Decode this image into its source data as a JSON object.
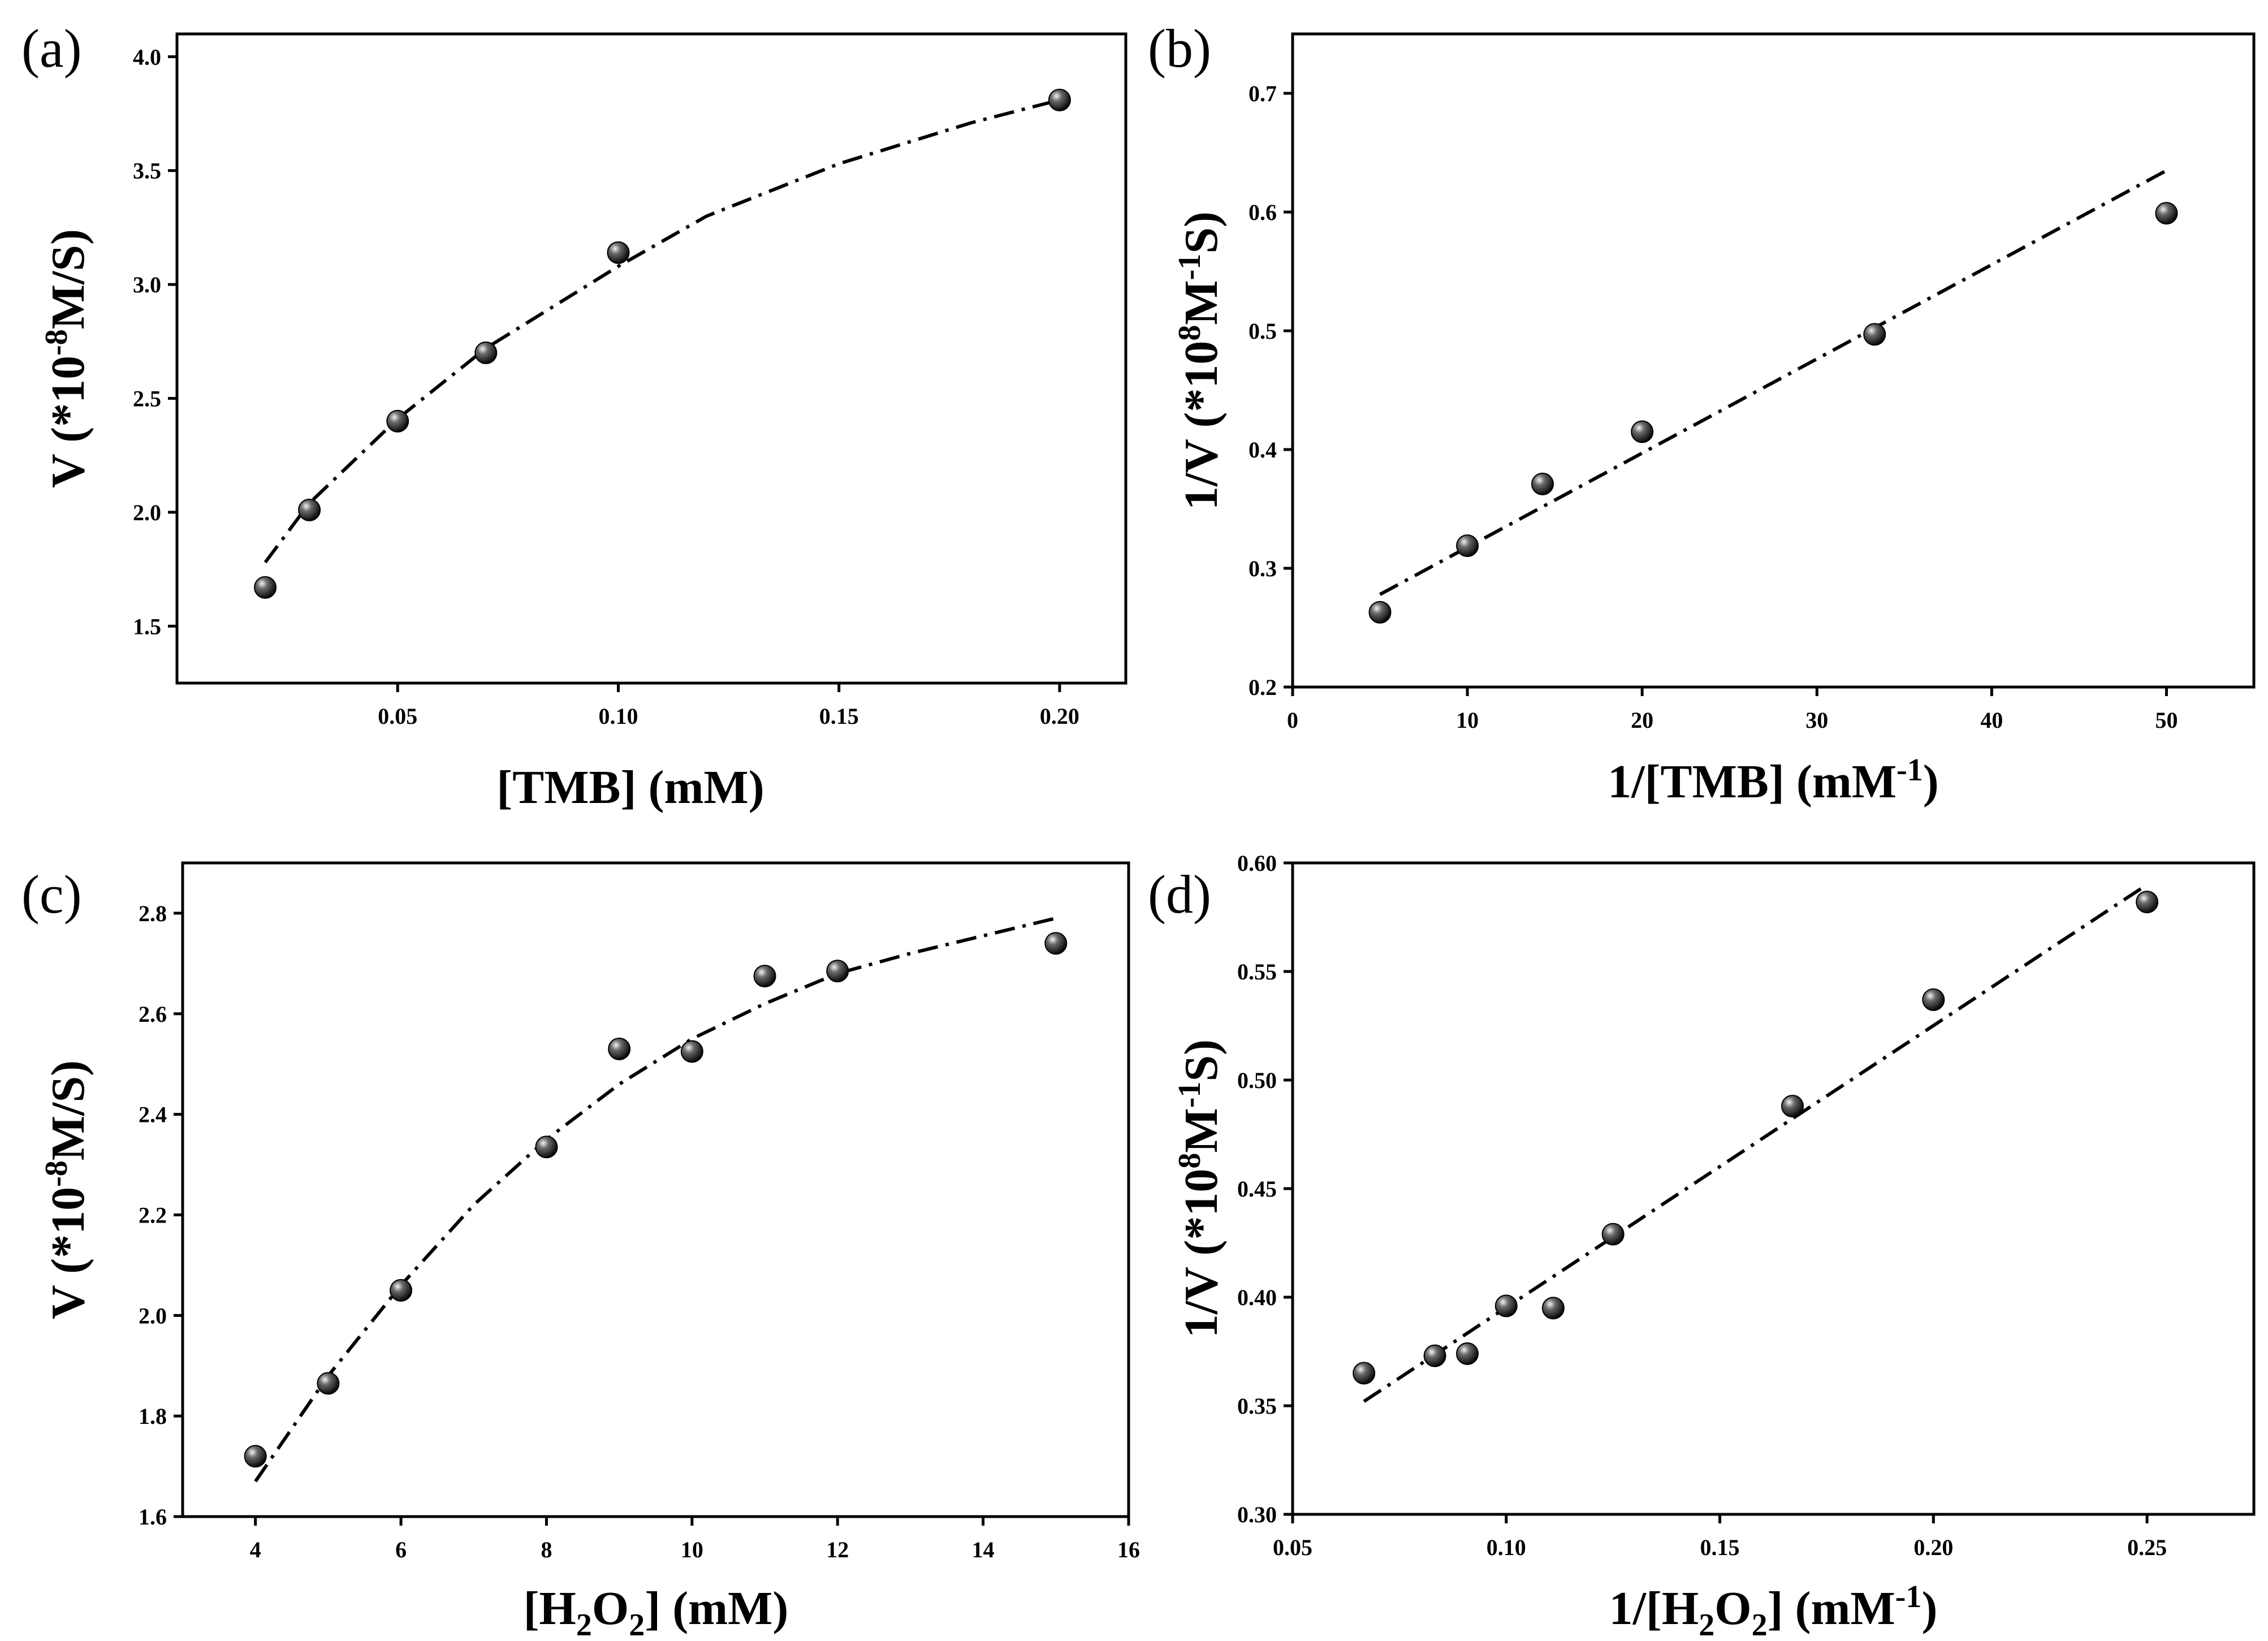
{
  "figure": {
    "background": "#ffffff",
    "marker_color": "#111111",
    "line_color": "#000000"
  },
  "chart_data": [
    {
      "id": "a",
      "panel_label": "(a)",
      "type": "scatter",
      "fit": "michaelis-menten",
      "x": [
        0.02,
        0.03,
        0.05,
        0.07,
        0.1,
        0.2
      ],
      "y": [
        1.67,
        2.01,
        2.4,
        2.7,
        3.14,
        3.81
      ],
      "fit_x": [
        0.02,
        0.03,
        0.05,
        0.07,
        0.1,
        0.12,
        0.15,
        0.18,
        0.2
      ],
      "fit_y": [
        1.78,
        2.04,
        2.41,
        2.72,
        3.08,
        3.3,
        3.53,
        3.71,
        3.81
      ],
      "xlim": [
        0.0,
        0.215
      ],
      "ylim": [
        1.25,
        4.1
      ],
      "xticks": [
        "0.05",
        "0.10",
        "0.15",
        "0.20"
      ],
      "yticks": [
        "1.5",
        "2.0",
        "2.5",
        "3.0",
        "3.5",
        "4.0"
      ],
      "xlabel": {
        "main": "[TMB] (mM)"
      },
      "ylabel": {
        "pre": "V (*10",
        "sup": "-8",
        "post": "M/S)"
      }
    },
    {
      "id": "b",
      "panel_label": "(b)",
      "type": "scatter",
      "fit": "linear",
      "x": [
        5,
        10,
        14.3,
        20,
        33.3,
        50
      ],
      "y": [
        0.263,
        0.319,
        0.371,
        0.415,
        0.497,
        0.599
      ],
      "fit_x": [
        5,
        50
      ],
      "fit_y": [
        0.278,
        0.635
      ],
      "xlim": [
        0,
        55
      ],
      "ylim": [
        0.2,
        0.75
      ],
      "xticks": [
        "0",
        "10",
        "20",
        "30",
        "40",
        "50"
      ],
      "yticks": [
        "0.2",
        "0.3",
        "0.4",
        "0.5",
        "0.6",
        "0.7"
      ],
      "xlabel": {
        "pre": "1/[TMB] (mM",
        "sup": "-1",
        "post": ")"
      },
      "ylabel": {
        "pre": "1/V (*10",
        "sup": "8",
        "mid": "M",
        "sup2": "-1",
        "post": "S)"
      }
    },
    {
      "id": "c",
      "panel_label": "(c)",
      "type": "scatter",
      "fit": "michaelis-menten",
      "x": [
        4,
        5,
        6,
        8,
        9,
        10,
        11,
        12,
        15
      ],
      "y": [
        1.72,
        1.865,
        2.05,
        2.335,
        2.53,
        2.525,
        2.675,
        2.685,
        2.74
      ],
      "fit_x": [
        4,
        5,
        6,
        7,
        8,
        9,
        10,
        11,
        12,
        13,
        14,
        15
      ],
      "fit_y": [
        1.67,
        1.88,
        2.06,
        2.22,
        2.35,
        2.46,
        2.55,
        2.62,
        2.68,
        2.72,
        2.755,
        2.79
      ],
      "xlim": [
        3,
        16
      ],
      "ylim": [
        1.6,
        2.9
      ],
      "xticks": [
        "4",
        "6",
        "8",
        "10",
        "12",
        "14",
        "16"
      ],
      "yticks": [
        "1.6",
        "1.8",
        "2.0",
        "2.2",
        "2.4",
        "2.6",
        "2.8"
      ],
      "xlabel": {
        "pre": "[H",
        "sub": "2",
        "mid": "O",
        "sub2": "2",
        "post": "] (mM)"
      },
      "ylabel": {
        "pre": "V (*10",
        "sup": "-8",
        "post": "M/S)"
      }
    },
    {
      "id": "d",
      "panel_label": "(d)",
      "type": "scatter",
      "fit": "linear",
      "x": [
        0.0667,
        0.0833,
        0.0909,
        0.1,
        0.111,
        0.125,
        0.167,
        0.2,
        0.25
      ],
      "y": [
        0.365,
        0.373,
        0.374,
        0.396,
        0.395,
        0.429,
        0.488,
        0.537,
        0.582
      ],
      "fit_x": [
        0.0667,
        0.25
      ],
      "fit_y": [
        0.352,
        0.59
      ],
      "xlim": [
        0.05,
        0.275
      ],
      "ylim": [
        0.3,
        0.6
      ],
      "xticks": [
        "0.05",
        "0.10",
        "0.15",
        "0.20",
        "0.25"
      ],
      "yticks": [
        "0.30",
        "0.35",
        "0.40",
        "0.45",
        "0.50",
        "0.55",
        "0.60"
      ],
      "xlabel": {
        "pre": "1/[H",
        "sub": "2",
        "mid": "O",
        "sub2": "2",
        "post": "] (mM",
        "sup": "-1",
        "end": ")"
      },
      "ylabel": {
        "pre": "1/V (*10",
        "sup": "8",
        "mid": "M",
        "sup2": "-1",
        "post": "S)"
      }
    }
  ]
}
